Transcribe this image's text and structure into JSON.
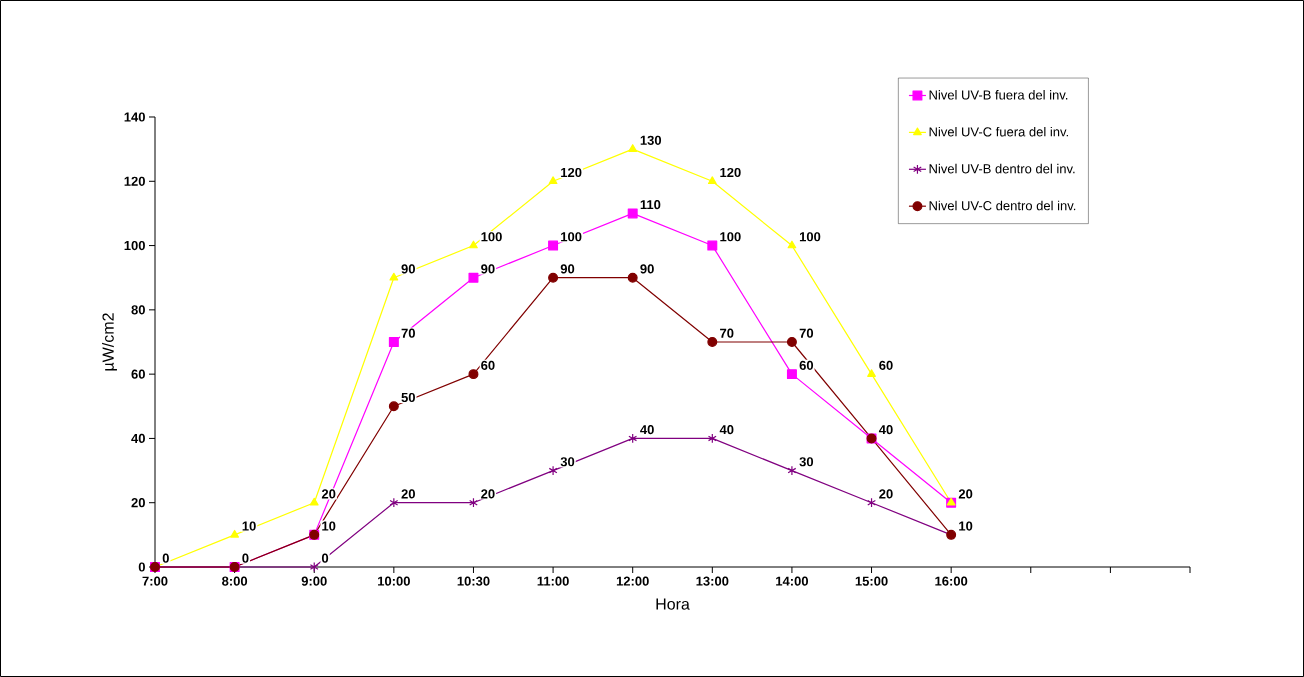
{
  "chart_data": {
    "type": "line",
    "xlabel": "Hora",
    "ylabel": "µW/cm2",
    "categories": [
      "7:00",
      "8:00",
      "9:00",
      "10:00",
      "10:30",
      "11:00",
      "12:00",
      "13:00",
      "14:00",
      "15:00",
      "16:00",
      null,
      null,
      null
    ],
    "series": [
      {
        "name": "Nivel UV-B fuera del inv.",
        "color": "#ff00ff",
        "marker": "square",
        "values": [
          0,
          0,
          10,
          70,
          90,
          100,
          110,
          100,
          60,
          40,
          20,
          null,
          null,
          null
        ],
        "value_labels": [
          null,
          null,
          "10",
          "70",
          "90",
          "100",
          "110",
          "100",
          "60",
          "40",
          null,
          null,
          null,
          null
        ]
      },
      {
        "name": "Nivel UV-C fuera del inv.",
        "color": "#ffff00",
        "marker": "triangle",
        "values": [
          0,
          10,
          20,
          90,
          100,
          120,
          130,
          120,
          100,
          60,
          20,
          null,
          null,
          null
        ],
        "value_labels": [
          null,
          "10",
          "20",
          "90",
          "100",
          "120",
          "130",
          "120",
          "100",
          "60",
          "20",
          null,
          null,
          null
        ]
      },
      {
        "name": "Nivel UV-B dentro del inv.",
        "color": "#800080",
        "marker": "cross",
        "values": [
          0,
          0,
          0,
          20,
          20,
          30,
          40,
          40,
          30,
          20,
          10,
          null,
          null,
          null
        ],
        "value_labels": [
          null,
          null,
          "0",
          "20",
          "20",
          "30",
          "40",
          "40",
          "30",
          "20",
          null,
          null,
          null,
          null
        ]
      },
      {
        "name": "Nivel UV-C dentro del inv.",
        "color": "#800000",
        "marker": "circle",
        "values": [
          0,
          0,
          10,
          50,
          60,
          90,
          90,
          70,
          70,
          40,
          10,
          null,
          null,
          null
        ],
        "value_labels": [
          "0",
          "0",
          null,
          "50",
          "60",
          "90",
          "90",
          "70",
          "70",
          null,
          "10",
          null,
          null,
          null
        ]
      }
    ],
    "ylim": [
      0,
      140
    ],
    "yticks": [
      0,
      20,
      40,
      60,
      80,
      100,
      120,
      140
    ],
    "grid": false,
    "legend": "top right",
    "line_style": "solid"
  }
}
